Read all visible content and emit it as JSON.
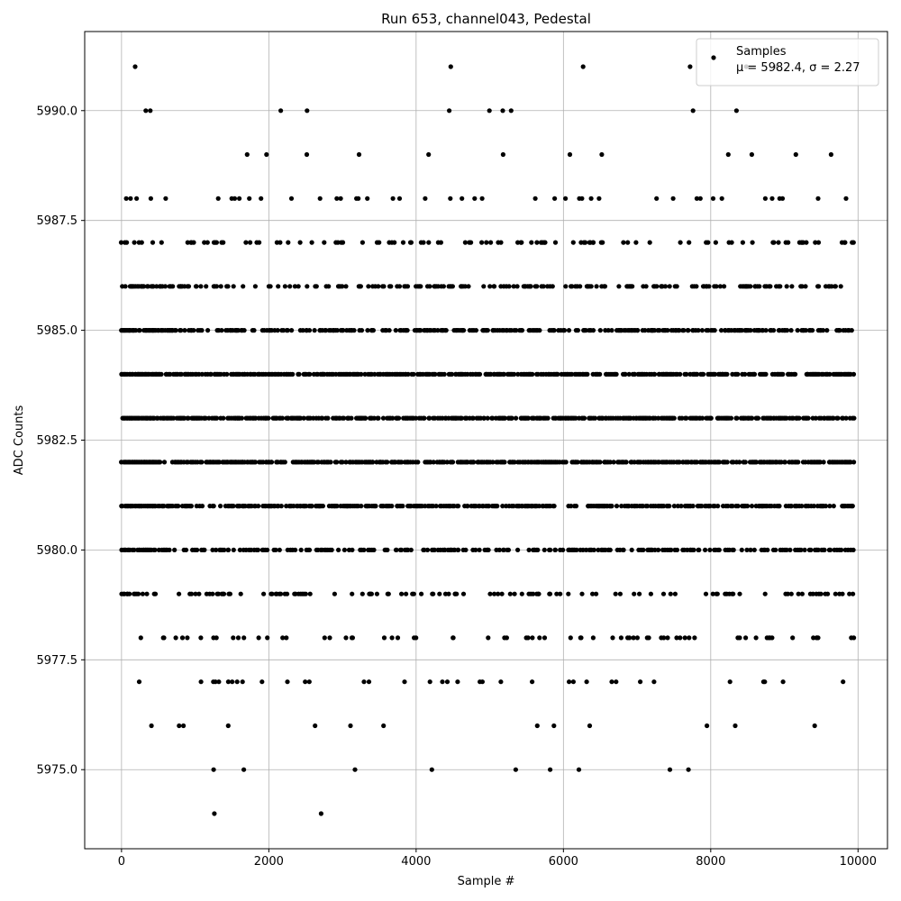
{
  "chart_data": {
    "type": "scatter",
    "title": "Run 653, channel043, Pedestal",
    "xlabel": "Sample #",
    "ylabel": "ADC Counts",
    "xlim": [
      -500,
      10400
    ],
    "ylim": [
      5973.2,
      5991.8
    ],
    "xticks": [
      0,
      2000,
      4000,
      6000,
      8000,
      10000
    ],
    "xtick_labels": [
      "0",
      "2000",
      "4000",
      "6000",
      "8000",
      "10000"
    ],
    "yticks": [
      5975.0,
      5977.5,
      5980.0,
      5982.5,
      5985.0,
      5987.5,
      5990.0
    ],
    "ytick_labels": [
      "5975.0",
      "5977.5",
      "5980.0",
      "5982.5",
      "5985.0",
      "5987.5",
      "5990.0"
    ],
    "grid": true,
    "legend_position": "top-right",
    "marker_color": "#000000",
    "series": [
      {
        "name": "Samples",
        "legend_stats": "μ = 5982.4, σ = 2.27",
        "x_start": 0,
        "x_end": 9950,
        "levels": [
          5974,
          5975,
          5976,
          5977,
          5978,
          5979,
          5980,
          5981,
          5982,
          5983,
          5984,
          5985,
          5986,
          5987,
          5988,
          5989,
          5990,
          5991
        ],
        "level_density": [
          0.0015,
          0.0035,
          0.02,
          0.045,
          0.12,
          0.2,
          0.38,
          0.55,
          0.62,
          0.62,
          0.58,
          0.45,
          0.3,
          0.16,
          0.06,
          0.025,
          0.007,
          0.004
        ],
        "highlights": [
          {
            "x": 185,
            "y": 5991
          },
          {
            "x": 4470,
            "y": 5991
          },
          {
            "x": 7720,
            "y": 5991
          },
          {
            "x": 330,
            "y": 5990
          },
          {
            "x": 390,
            "y": 5990
          },
          {
            "x": 4450,
            "y": 5990
          },
          {
            "x": 5290,
            "y": 5990
          },
          {
            "x": 7760,
            "y": 5990
          },
          {
            "x": 8350,
            "y": 5990
          },
          {
            "x": 1260,
            "y": 5974
          },
          {
            "x": 2710,
            "y": 5974
          },
          {
            "x": 1250,
            "y": 5975
          },
          {
            "x": 1660,
            "y": 5975
          },
          {
            "x": 5820,
            "y": 5975
          },
          {
            "x": 6210,
            "y": 5975
          }
        ]
      }
    ]
  }
}
